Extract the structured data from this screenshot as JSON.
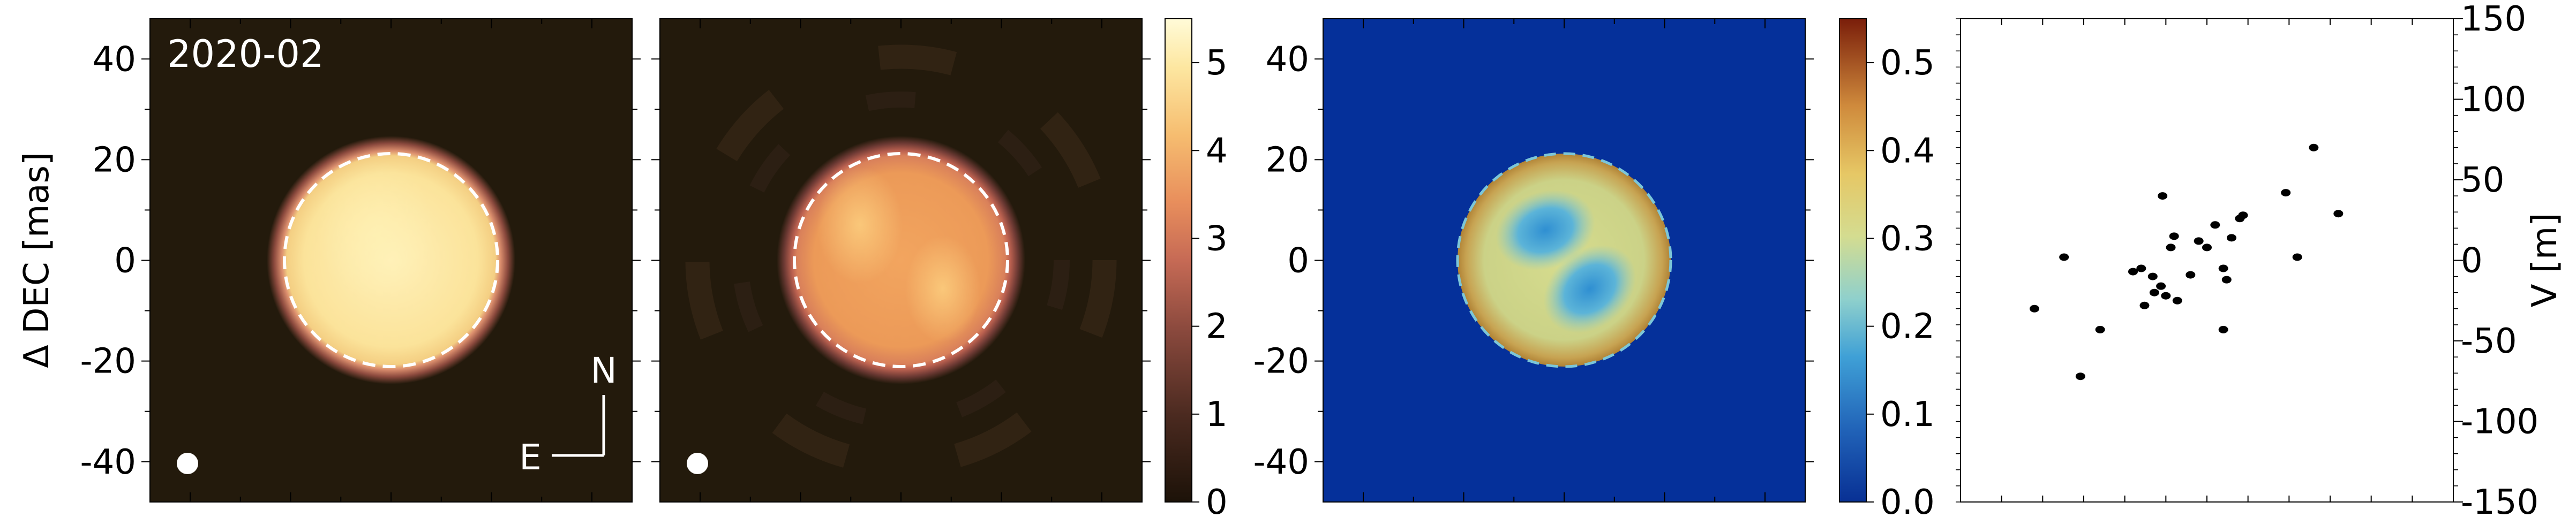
{
  "figure": {
    "epoch_label": "2020-02",
    "compass_north": "N",
    "compass_east": "E",
    "ylabel_left": "Δ DEC [mas]",
    "ylabel_right": "V [m]"
  },
  "colorbar_intensity": {
    "range": [
      0,
      5.5
    ],
    "ticks": [
      "0",
      "1",
      "2",
      "3",
      "4",
      "5"
    ],
    "colormap": "pink-afmhot (dark brown to pale yellow)"
  },
  "colorbar_ratio": {
    "range": [
      0.0,
      0.55
    ],
    "ticks": [
      "0.0",
      "0.1",
      "0.2",
      "0.3",
      "0.4",
      "0.5"
    ],
    "colormap": "RdYlBu_r-like (dark blue to dark red)"
  },
  "chart_data": [
    {
      "type": "heatmap",
      "panel": "observed image",
      "text": "2020-02",
      "xlim": [
        -48,
        48
      ],
      "ylim": [
        -48,
        48
      ],
      "yticks": [
        "-40",
        "-20",
        "0",
        "20",
        "40"
      ],
      "disk": {
        "center": [
          0,
          0
        ],
        "radius_mas": 21
      },
      "dashed_circle_radius_mas": 21,
      "beam_marker": "white dot (lower left)",
      "compass": [
        "N",
        "E"
      ],
      "colors": {
        "background": "#231a0c",
        "disk_center": "#ffe9a8",
        "limb": "#c9785e"
      }
    },
    {
      "type": "heatmap",
      "panel": "model / reconstructed image",
      "xlim": [
        -48,
        48
      ],
      "ylim": [
        -48,
        48
      ],
      "disk": {
        "center": [
          0,
          0
        ],
        "radius_mas": 21
      },
      "dashed_circle_radius_mas": 21,
      "beam_marker": "white dot (lower left)",
      "colors": {
        "background": "#231a0c",
        "disk_center": "#ee9a58",
        "limb": "#b35c4e"
      }
    },
    {
      "type": "heatmap",
      "panel": "ratio map",
      "xlim": [
        -48,
        48
      ],
      "ylim": [
        -48,
        48
      ],
      "yticks": [
        "-40",
        "-20",
        "0",
        "20",
        "40"
      ],
      "disk": {
        "center": [
          0,
          0
        ],
        "radius_mas": 21
      },
      "features": [
        {
          "kind": "blue low region",
          "center": [
            -6,
            4
          ]
        },
        {
          "kind": "blue low region",
          "center": [
            6,
            -4
          ]
        }
      ],
      "colors": {
        "background": "#05309a",
        "disk_base": "#c5cf82",
        "low": "#3b9fd6",
        "rim": "#b5862e"
      }
    },
    {
      "type": "scatter",
      "panel": "velocity distribution",
      "ylabel": "V [m]",
      "ylim": [
        -150,
        150
      ],
      "yticks": [
        "-150",
        "-100",
        "-50",
        "0",
        "50",
        "100",
        "150"
      ],
      "xlim": [
        0,
        300
      ],
      "x": [
        45,
        63,
        85,
        73,
        105,
        110,
        117,
        122,
        112,
        123,
        130,
        128,
        118,
        125,
        132,
        140,
        150,
        145,
        155,
        165,
        160,
        162,
        170,
        172,
        160,
        198,
        205,
        215,
        230
      ],
      "y": [
        -30,
        2,
        -43,
        -72,
        -7,
        -5,
        -10,
        -16,
        -28,
        40,
        15,
        8,
        -20,
        -22,
        -25,
        -9,
        8,
        12,
        22,
        14,
        -5,
        -12,
        26,
        28,
        -43,
        42,
        2,
        70,
        29
      ]
    }
  ]
}
